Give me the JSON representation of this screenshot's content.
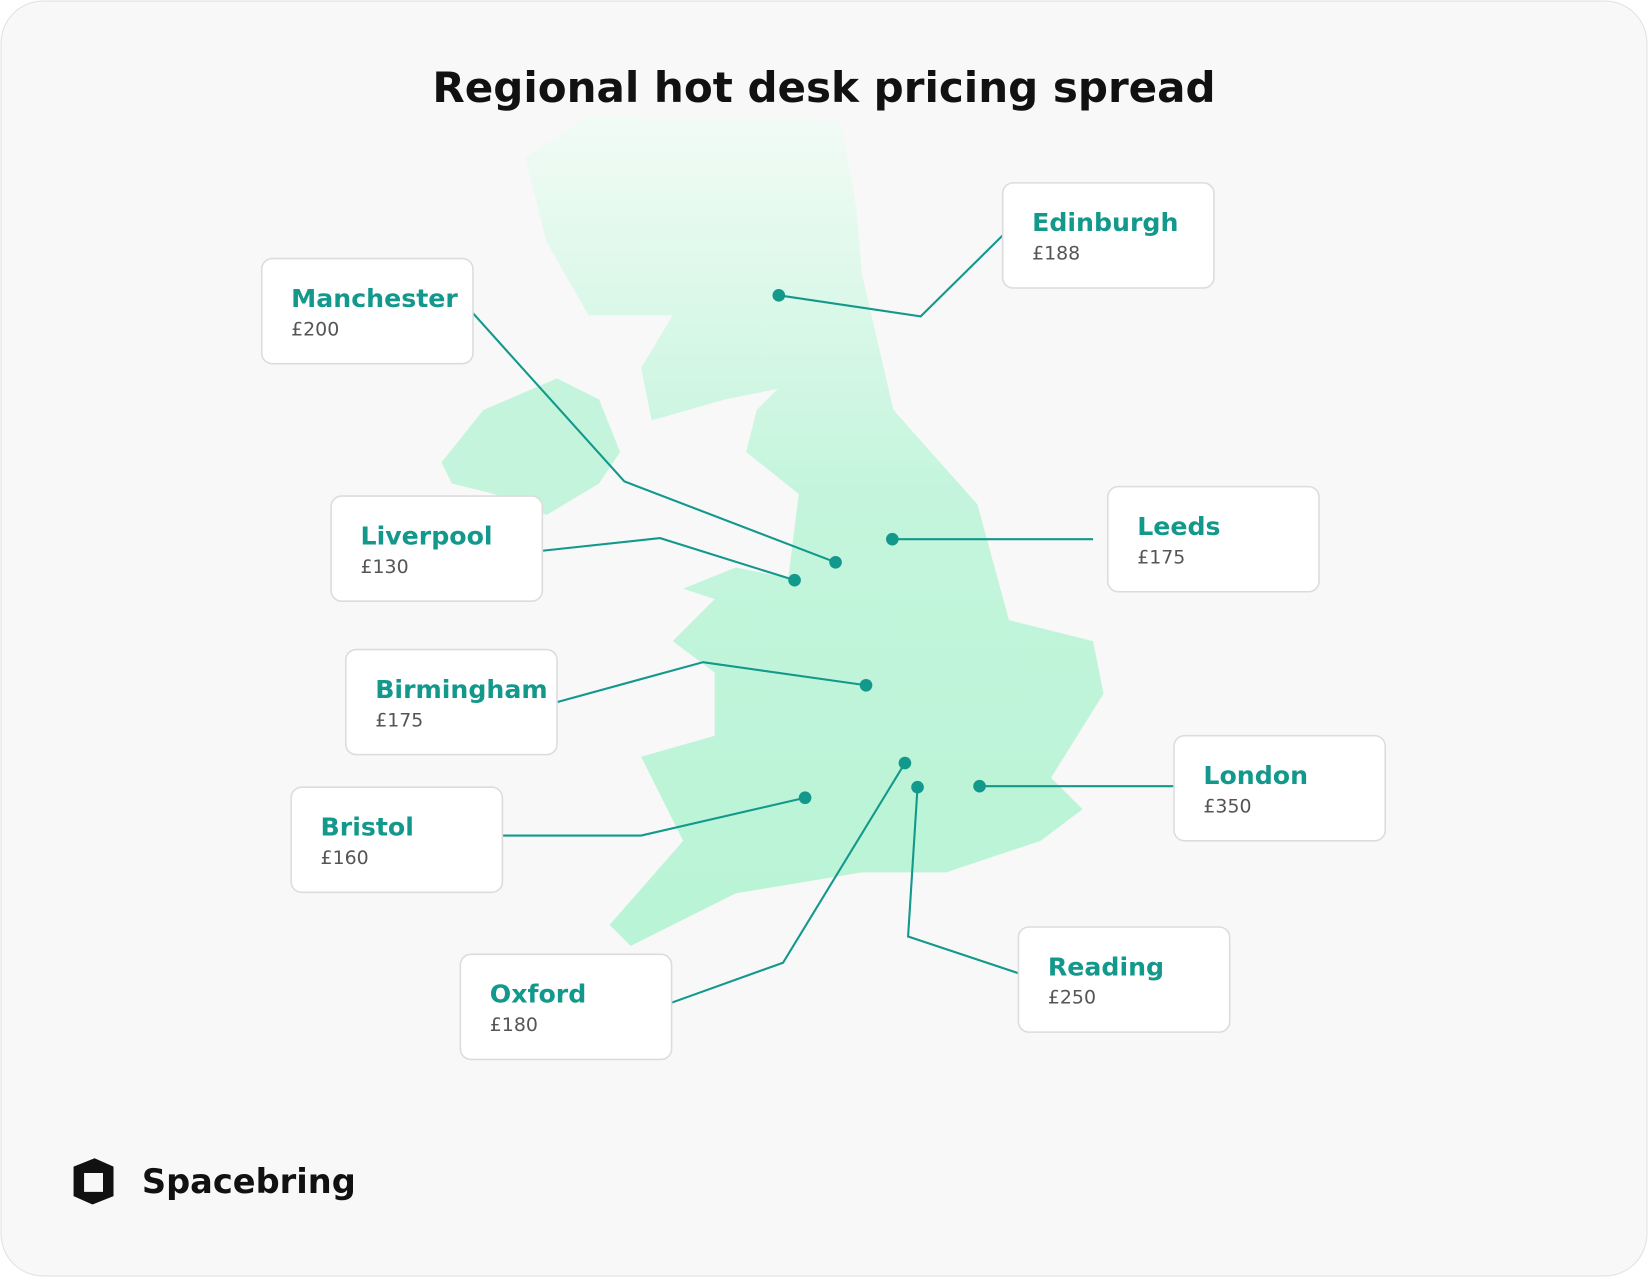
{
  "header": {
    "title": "Regional hot desk pricing spread"
  },
  "cities": [
    {
      "name": "Edinburgh",
      "price": "£188"
    },
    {
      "name": "Manchester",
      "price": "£200"
    },
    {
      "name": "Liverpool",
      "price": "£130"
    },
    {
      "name": "Leeds",
      "price": "£175"
    },
    {
      "name": "Birmingham",
      "price": "£175"
    },
    {
      "name": "London",
      "price": "£350"
    },
    {
      "name": "Bristol",
      "price": "£160"
    },
    {
      "name": "Oxford",
      "price": "£180"
    },
    {
      "name": "Reading",
      "price": "£250"
    }
  ],
  "footer": {
    "brand": "Spacebring"
  }
}
